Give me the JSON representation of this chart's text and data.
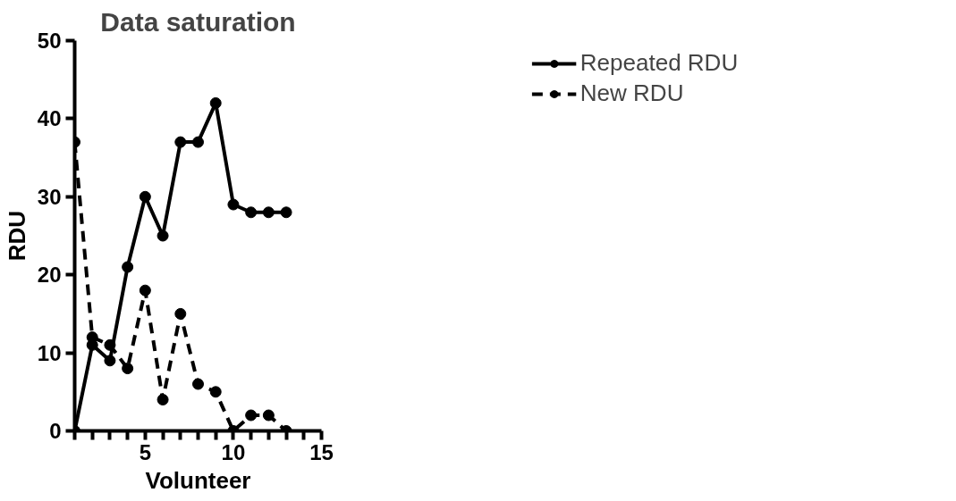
{
  "chart_data": {
    "type": "line",
    "title": "Data saturation",
    "xlabel": "Volunteer",
    "ylabel": "RDU",
    "x": [
      1,
      2,
      3,
      4,
      5,
      6,
      7,
      8,
      9,
      10,
      11,
      12,
      13
    ],
    "series": [
      {
        "name": "Repeated RDU",
        "color": "#000000",
        "line_style": "solid",
        "values": [
          0,
          11,
          9,
          21,
          30,
          25,
          37,
          37,
          42,
          29,
          28,
          28,
          28
        ]
      },
      {
        "name": "New RDU",
        "color": "#000000",
        "line_style": "dashed",
        "values": [
          37,
          12,
          11,
          8,
          18,
          4,
          15,
          6,
          5,
          0,
          2,
          2,
          0
        ]
      }
    ],
    "xlim": [
      1,
      15
    ],
    "xticks": [
      {
        "value": 1,
        "label": null
      },
      {
        "value": 2,
        "label": null
      },
      {
        "value": 3,
        "label": null
      },
      {
        "value": 4,
        "label": null
      },
      5,
      {
        "value": 6,
        "label": null
      },
      {
        "value": 7,
        "label": null
      },
      {
        "value": 8,
        "label": null
      },
      {
        "value": 9,
        "label": null
      },
      10,
      {
        "value": 11,
        "label": null
      },
      {
        "value": 12,
        "label": null
      },
      {
        "value": 13,
        "label": null
      },
      {
        "value": 14,
        "label": null
      },
      15
    ],
    "ylim": [
      0,
      50
    ],
    "yticks": [
      0,
      10,
      20,
      30,
      40,
      50
    ],
    "grid": false,
    "legend": "top right",
    "marker": "circle"
  }
}
